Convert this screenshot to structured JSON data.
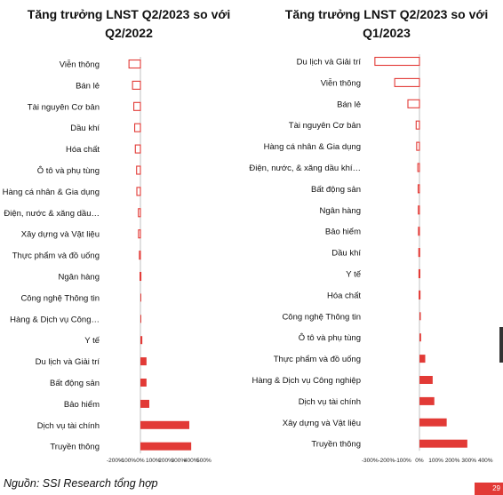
{
  "source_note": "Nguồn: SSI Research tổng hợp",
  "page_number": "29",
  "colors": {
    "bar": "#e23a36",
    "axis": "#999999"
  },
  "chart_data": [
    {
      "type": "bar",
      "orientation": "horizontal",
      "title": "Tăng trưởng LNST Q2/2023 so với Q2/2022",
      "title_lines": [
        "Tăng trưởng LNST Q2/2023 so với",
        "Q2/2022"
      ],
      "categories": [
        "Viễn thông",
        "Bán lẻ",
        "Tài nguyên Cơ bản",
        "Dầu khí",
        "Hóa chất",
        "Ô tô và phụ tùng",
        "Hàng cá nhân & Gia dụng",
        "Điện, nước & xăng dầu…",
        "Xây dựng và Vật liệu",
        "Thực phẩm và đồ uống",
        "Ngân hàng",
        "Công nghệ Thông tin",
        "Hàng & Dịch vụ Công…",
        "Y tế",
        "Du lịch và Giải trí",
        "Bất động sản",
        "Bảo hiểm",
        "Dịch vụ tài chính",
        "Truyền thông"
      ],
      "values": [
        -90,
        -62,
        -52,
        -45,
        -40,
        -30,
        -28,
        -16,
        -15,
        -8,
        -3,
        2,
        3,
        15,
        48,
        48,
        70,
        385,
        400
      ],
      "unit": "%",
      "xlim": [
        -200,
        500
      ],
      "xticks": [
        -200,
        -100,
        0,
        100,
        200,
        300,
        400,
        500
      ],
      "xtick_labels": [
        "-200%",
        "-100%",
        "0%",
        "100%",
        "200%",
        "300%",
        "400%",
        "500%"
      ],
      "style": "negative values drawn as outlined bars, positive values as filled bars"
    },
    {
      "type": "bar",
      "orientation": "horizontal",
      "title": "Tăng trưởng LNST Q2/2023 so với Q1/2023",
      "title_lines": [
        "Tăng trưởng LNST Q2/2023 so với",
        "Q1/2023"
      ],
      "categories": [
        "Du lịch và Giải trí",
        "Viễn thông",
        "Bán lẻ",
        "Tài nguyên Cơ bản",
        "Hàng cá nhân & Gia dụng",
        "Điện, nước, & xăng dầu khí…",
        "Bất động sản",
        "Ngân hàng",
        "Bảo hiểm",
        "Dầu khí",
        "Y tế",
        "Hóa chất",
        "Công nghệ Thông tin",
        "Ô tô và phụ tùng",
        "Thực phẩm và đồ uống",
        "Hàng & Dịch vụ Công nghiệp",
        "Dịch vụ tài chính",
        "Xây dựng và Vật liệu",
        "Truyền thông"
      ],
      "values": [
        -270,
        -150,
        -70,
        -20,
        -17,
        -10,
        -8,
        -7,
        -6,
        -4,
        -3,
        -2,
        8,
        10,
        35,
        80,
        90,
        165,
        290
      ],
      "unit": "%",
      "xlim": [
        -300,
        400
      ],
      "xticks": [
        -300,
        -200,
        -100,
        0,
        100,
        200,
        300,
        400
      ],
      "xtick_labels": [
        "-300%",
        "-200%",
        "-100%",
        "0%",
        "100%",
        "200%",
        "300%",
        "400%"
      ],
      "style": "negative values drawn as outlined bars, positive values as filled bars"
    }
  ]
}
